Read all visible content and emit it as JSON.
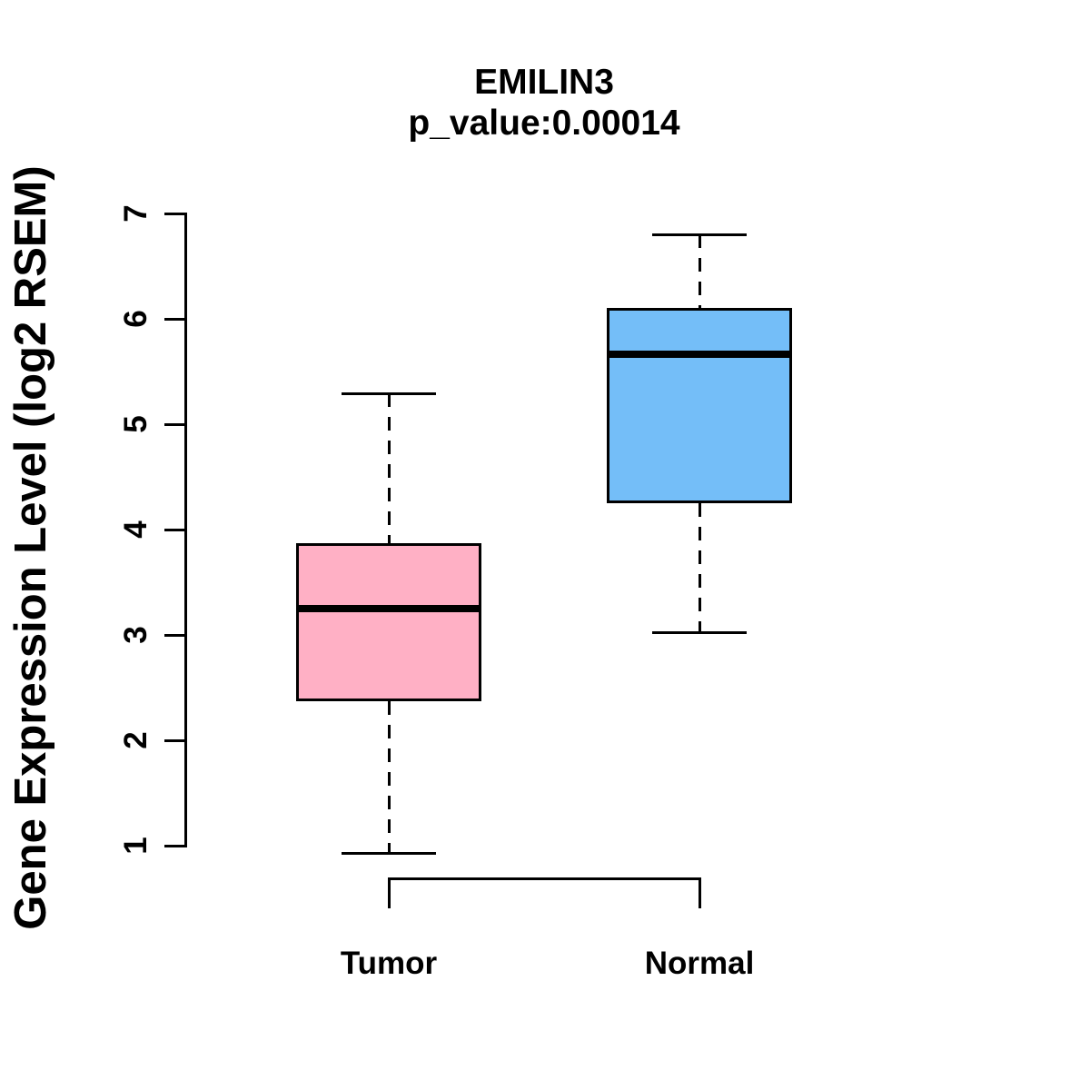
{
  "chart_data": {
    "type": "boxplot",
    "title": "EMILIN3",
    "subtitle": "p_value:0.00014",
    "ylabel": "Gene Expression Level (log2 RSEM)",
    "ylim": [
      1,
      7
    ],
    "yticks": [
      1,
      2,
      3,
      4,
      5,
      6,
      7
    ],
    "grid": false,
    "border_color": "#000000",
    "groups": [
      {
        "label": "Tumor",
        "fill_color": "#ffb0c5",
        "whisker_low": 0.93,
        "q1": 2.37,
        "median": 3.25,
        "q3": 3.87,
        "whisker_high": 5.29
      },
      {
        "label": "Normal",
        "fill_color": "#74bef8",
        "whisker_low": 3.03,
        "q1": 4.25,
        "median": 5.66,
        "q3": 6.1,
        "whisker_high": 6.8
      }
    ]
  }
}
